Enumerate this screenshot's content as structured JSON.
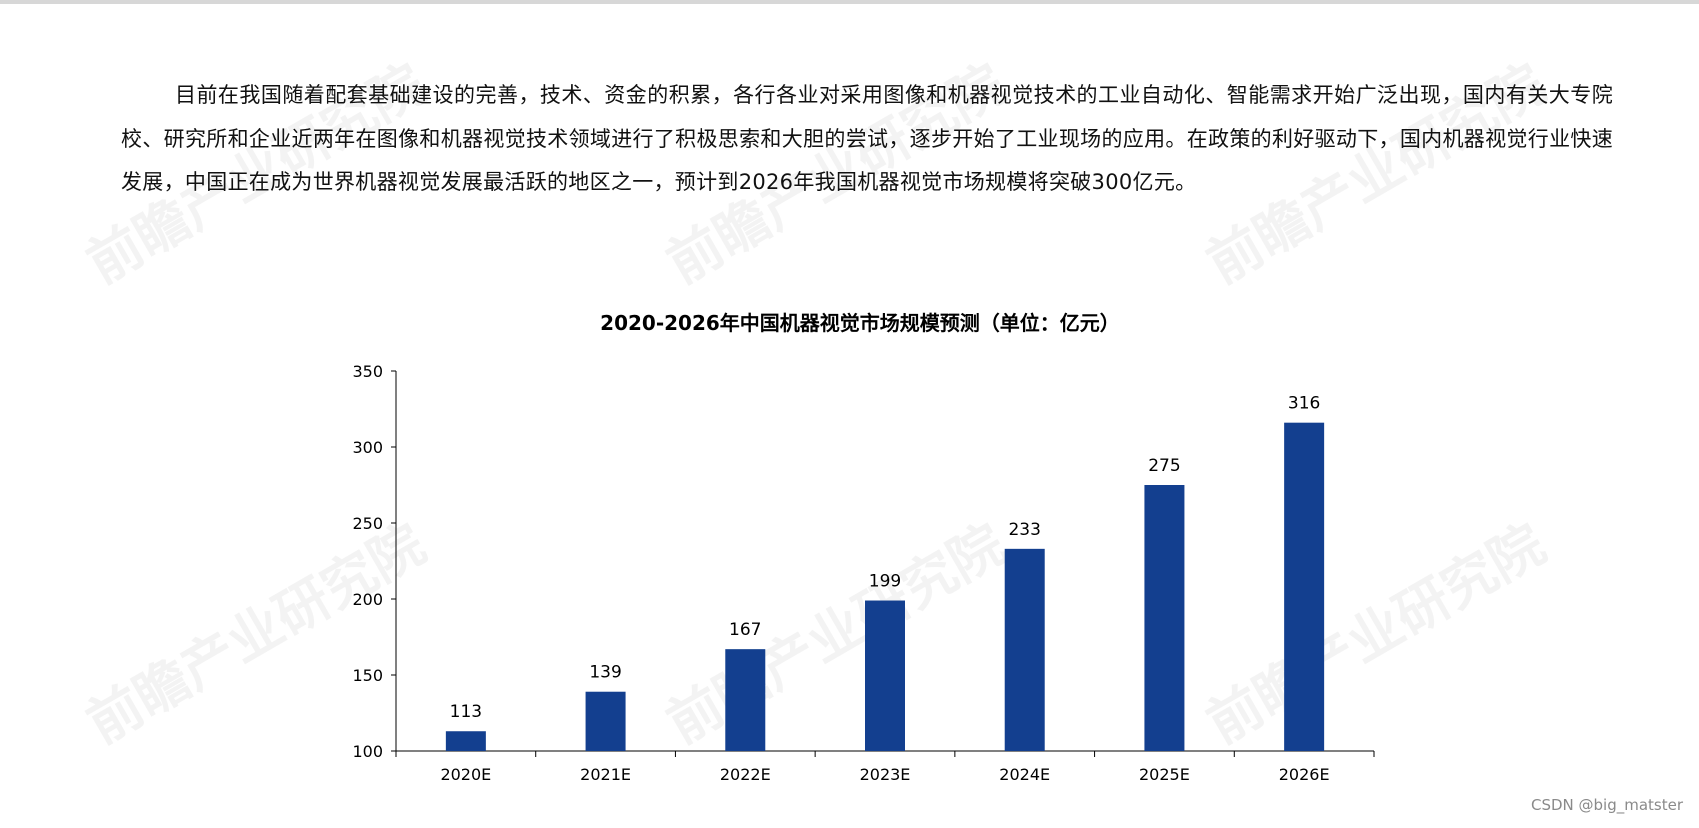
{
  "article": {
    "paragraph": "目前在我国随着配套基础建设的完善，技术、资金的积累，各行各业对采用图像和机器视觉技术的工业自动化、智能需求开始广泛出现，国内有关大专院校、研究所和企业近两年在图像和机器视觉技术领域进行了积极思索和大胆的尝试，逐步开始了工业现场的应用。在政策的利好驱动下，国内机器视觉行业快速发展，中国正在成为世界机器视觉发展最活跃的地区之一，预计到2026年我国机器视觉市场规模将突破300亿元。"
  },
  "watermark": {
    "text": "前瞻产业研究院"
  },
  "credit": "CSDN @big_matster",
  "colors": {
    "bar": "#133f8f",
    "axis": "#000000",
    "text": "#111111"
  },
  "chart_data": {
    "type": "bar",
    "title": "2020-2026年中国机器视觉市场规模预测（单位：亿元）",
    "categories": [
      "2020E",
      "2021E",
      "2022E",
      "2023E",
      "2024E",
      "2025E",
      "2026E"
    ],
    "values": [
      113,
      139,
      167,
      199,
      233,
      275,
      316
    ],
    "ylim": [
      100,
      350
    ],
    "yticks": [
      100,
      150,
      200,
      250,
      300,
      350
    ],
    "xlabel": "",
    "ylabel": "",
    "grid": false,
    "legend": "none"
  }
}
